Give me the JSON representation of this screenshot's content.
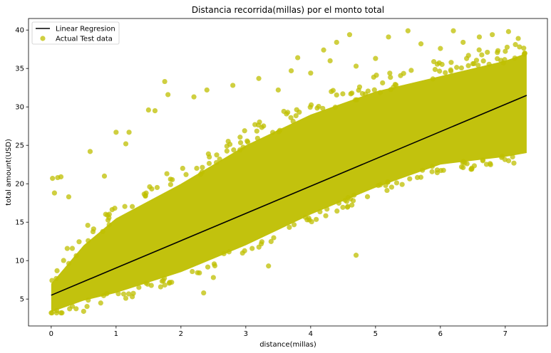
{
  "chart_data": {
    "type": "scatter",
    "title": "Distancia recorrida(millas) por el monto total",
    "xlabel": "distance(millas)",
    "ylabel": "total amount(USD)",
    "xlim": [
      -0.35,
      7.65
    ],
    "ylim": [
      1.5,
      41.5
    ],
    "xticks": [
      0,
      1,
      2,
      3,
      4,
      5,
      6,
      7
    ],
    "yticks": [
      5,
      10,
      15,
      20,
      25,
      30,
      35,
      40
    ],
    "grid": false,
    "legend_position": "top-left",
    "series": [
      {
        "name": "Linear Regresion",
        "kind": "line",
        "color": "#000000",
        "x": [
          0.0,
          7.33
        ],
        "y": [
          5.5,
          31.5
        ]
      },
      {
        "name": "Actual Test data",
        "kind": "scatter",
        "color": "#bfbf00",
        "band": {
          "x": [
            0.0,
            0.5,
            1.0,
            2.0,
            3.0,
            4.0,
            5.0,
            6.0,
            7.0,
            7.33
          ],
          "dense_low": [
            3.3,
            4.8,
            5.8,
            8.5,
            12.0,
            16.0,
            19.5,
            22.5,
            23.5,
            24.0
          ],
          "dense_high": [
            7.0,
            12.0,
            15.5,
            20.0,
            25.0,
            29.0,
            32.0,
            34.0,
            36.0,
            37.0
          ]
        },
        "points": [
          [
            0.02,
            20.7
          ],
          [
            0.05,
            18.8
          ],
          [
            0.1,
            20.8
          ],
          [
            0.15,
            20.9
          ],
          [
            0.27,
            18.3
          ],
          [
            0.6,
            24.2
          ],
          [
            0.82,
            21.0
          ],
          [
            1.0,
            26.7
          ],
          [
            1.15,
            25.2
          ],
          [
            1.2,
            26.7
          ],
          [
            1.5,
            29.6
          ],
          [
            1.6,
            29.5
          ],
          [
            1.75,
            33.3
          ],
          [
            1.8,
            31.6
          ],
          [
            2.2,
            31.3
          ],
          [
            2.4,
            32.2
          ],
          [
            2.8,
            32.8
          ],
          [
            3.2,
            33.7
          ],
          [
            3.5,
            32.2
          ],
          [
            3.7,
            34.7
          ],
          [
            3.8,
            36.4
          ],
          [
            4.0,
            34.4
          ],
          [
            4.2,
            37.4
          ],
          [
            4.3,
            36.0
          ],
          [
            4.4,
            38.4
          ],
          [
            4.6,
            39.4
          ],
          [
            4.7,
            35.3
          ],
          [
            5.0,
            36.3
          ],
          [
            5.2,
            39.1
          ],
          [
            5.5,
            39.9
          ],
          [
            5.7,
            38.2
          ],
          [
            6.0,
            37.6
          ],
          [
            6.2,
            39.9
          ],
          [
            6.35,
            38.4
          ],
          [
            6.6,
            39.1
          ],
          [
            6.8,
            39.4
          ],
          [
            7.05,
            39.8
          ],
          [
            7.2,
            38.9
          ],
          [
            7.3,
            37.0
          ],
          [
            2.35,
            5.8
          ],
          [
            2.5,
            7.8
          ],
          [
            3.35,
            9.3
          ],
          [
            4.7,
            10.7
          ],
          [
            1.25,
            5.3
          ],
          [
            0.5,
            3.4
          ]
        ]
      }
    ]
  }
}
